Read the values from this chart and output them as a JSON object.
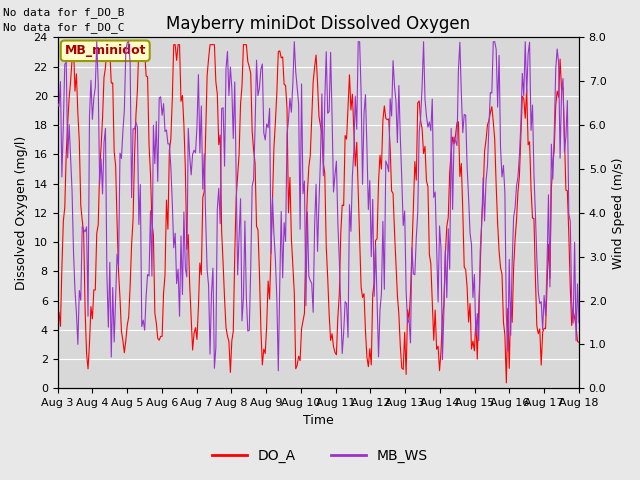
{
  "title": "Mayberry miniDot Dissolved Oxygen",
  "xlabel": "Time",
  "ylabel_left": "Dissolved Oxygen (mg/l)",
  "ylabel_right": "Wind Speed (m/s)",
  "text_no_data_1": "No data for f_DO_B",
  "text_no_data_2": "No data for f_DO_C",
  "legend_box_label": "MB_minidot",
  "legend_entry_do": "DO_A",
  "legend_entry_ws": "MB_WS",
  "do_color": "#ff0000",
  "ws_color": "#9933cc",
  "fig_bg_color": "#e8e8e8",
  "plot_bg_color": "#d8d8d8",
  "grid_color": "#ffffff",
  "minidot_box_fc": "#ffffcc",
  "minidot_box_ec": "#999900",
  "minidot_text_color": "#aa0000",
  "ylim_left": [
    0,
    24
  ],
  "ylim_right": [
    0.0,
    8.0
  ],
  "yticks_left": [
    0,
    2,
    4,
    6,
    8,
    10,
    12,
    14,
    16,
    18,
    20,
    22,
    24
  ],
  "yticks_right": [
    0.0,
    1.0,
    2.0,
    3.0,
    4.0,
    5.0,
    6.0,
    7.0,
    8.0
  ],
  "xtick_labels": [
    "Aug 3",
    "Aug 4",
    "Aug 5",
    "Aug 6",
    "Aug 7",
    "Aug 8",
    "Aug 9",
    "Aug 10",
    "Aug 11",
    "Aug 12",
    "Aug 13",
    "Aug 14",
    "Aug 15",
    "Aug 16",
    "Aug 17",
    "Aug 18"
  ],
  "n_days": 15,
  "font_size": 9,
  "title_font_size": 12,
  "tick_labelsize": 8
}
